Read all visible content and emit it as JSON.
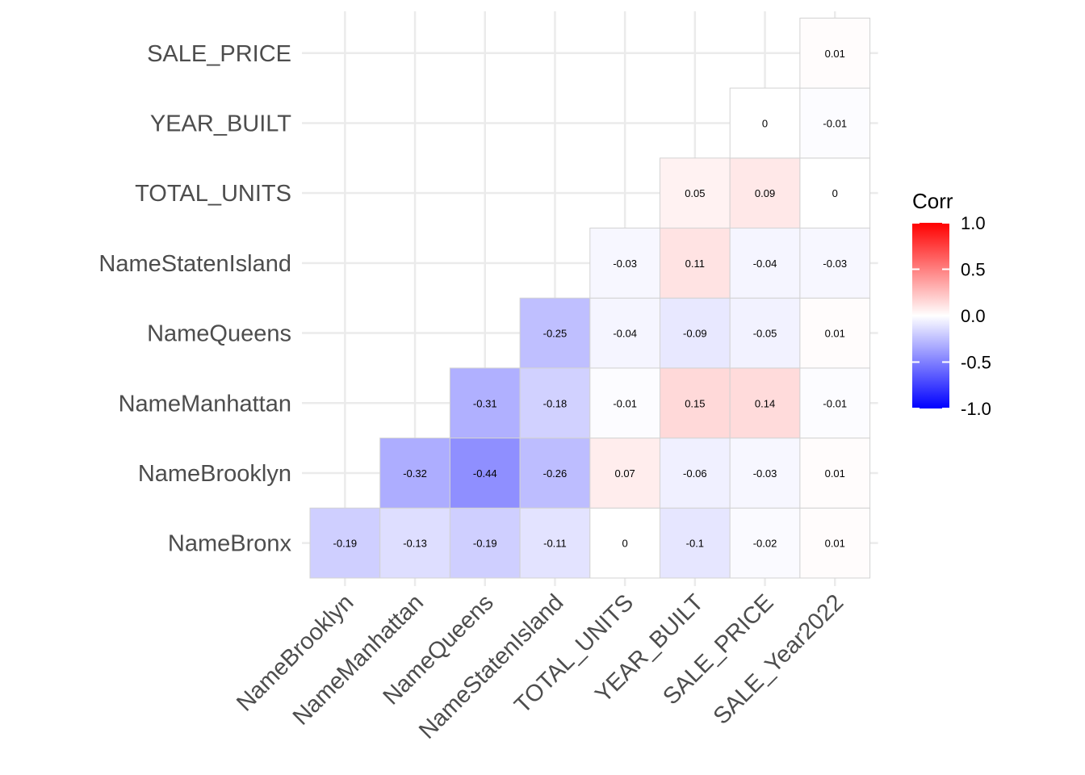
{
  "chart_data": {
    "type": "heatmap",
    "title": "",
    "xlabel": "",
    "ylabel": "",
    "x_categories": [
      "NameBrooklyn",
      "NameManhattan",
      "NameQueens",
      "NameStatenIsland",
      "TOTAL_UNITS",
      "YEAR_BUILT",
      "SALE_PRICE",
      "SALE_Year2022"
    ],
    "y_categories": [
      "NameBronx",
      "NameBrooklyn",
      "NameManhattan",
      "NameQueens",
      "NameStatenIsland",
      "TOTAL_UNITS",
      "YEAR_BUILT",
      "SALE_PRICE"
    ],
    "cells": [
      {
        "row": "NameBronx",
        "col": "NameBrooklyn",
        "value": -0.19,
        "label": "-0.19"
      },
      {
        "row": "NameBronx",
        "col": "NameManhattan",
        "value": -0.13,
        "label": "-0.13"
      },
      {
        "row": "NameBronx",
        "col": "NameQueens",
        "value": -0.19,
        "label": "-0.19"
      },
      {
        "row": "NameBronx",
        "col": "NameStatenIsland",
        "value": -0.11,
        "label": "-0.11"
      },
      {
        "row": "NameBronx",
        "col": "TOTAL_UNITS",
        "value": 0,
        "label": "0"
      },
      {
        "row": "NameBronx",
        "col": "YEAR_BUILT",
        "value": -0.1,
        "label": "-0.1"
      },
      {
        "row": "NameBronx",
        "col": "SALE_PRICE",
        "value": -0.02,
        "label": "-0.02"
      },
      {
        "row": "NameBronx",
        "col": "SALE_Year2022",
        "value": 0.01,
        "label": "0.01"
      },
      {
        "row": "NameBrooklyn",
        "col": "NameManhattan",
        "value": -0.32,
        "label": "-0.32"
      },
      {
        "row": "NameBrooklyn",
        "col": "NameQueens",
        "value": -0.44,
        "label": "-0.44"
      },
      {
        "row": "NameBrooklyn",
        "col": "NameStatenIsland",
        "value": -0.26,
        "label": "-0.26"
      },
      {
        "row": "NameBrooklyn",
        "col": "TOTAL_UNITS",
        "value": 0.07,
        "label": "0.07"
      },
      {
        "row": "NameBrooklyn",
        "col": "YEAR_BUILT",
        "value": -0.06,
        "label": "-0.06"
      },
      {
        "row": "NameBrooklyn",
        "col": "SALE_PRICE",
        "value": -0.03,
        "label": "-0.03"
      },
      {
        "row": "NameBrooklyn",
        "col": "SALE_Year2022",
        "value": 0.01,
        "label": "0.01"
      },
      {
        "row": "NameManhattan",
        "col": "NameQueens",
        "value": -0.31,
        "label": "-0.31"
      },
      {
        "row": "NameManhattan",
        "col": "NameStatenIsland",
        "value": -0.18,
        "label": "-0.18"
      },
      {
        "row": "NameManhattan",
        "col": "TOTAL_UNITS",
        "value": -0.01,
        "label": "-0.01"
      },
      {
        "row": "NameManhattan",
        "col": "YEAR_BUILT",
        "value": 0.15,
        "label": "0.15"
      },
      {
        "row": "NameManhattan",
        "col": "SALE_PRICE",
        "value": 0.14,
        "label": "0.14"
      },
      {
        "row": "NameManhattan",
        "col": "SALE_Year2022",
        "value": -0.01,
        "label": "-0.01"
      },
      {
        "row": "NameQueens",
        "col": "NameStatenIsland",
        "value": -0.25,
        "label": "-0.25"
      },
      {
        "row": "NameQueens",
        "col": "TOTAL_UNITS",
        "value": -0.04,
        "label": "-0.04"
      },
      {
        "row": "NameQueens",
        "col": "YEAR_BUILT",
        "value": -0.09,
        "label": "-0.09"
      },
      {
        "row": "NameQueens",
        "col": "SALE_PRICE",
        "value": -0.05,
        "label": "-0.05"
      },
      {
        "row": "NameQueens",
        "col": "SALE_Year2022",
        "value": 0.01,
        "label": "0.01"
      },
      {
        "row": "NameStatenIsland",
        "col": "TOTAL_UNITS",
        "value": -0.03,
        "label": "-0.03"
      },
      {
        "row": "NameStatenIsland",
        "col": "YEAR_BUILT",
        "value": 0.11,
        "label": "0.11"
      },
      {
        "row": "NameStatenIsland",
        "col": "SALE_PRICE",
        "value": -0.04,
        "label": "-0.04"
      },
      {
        "row": "NameStatenIsland",
        "col": "SALE_Year2022",
        "value": -0.03,
        "label": "-0.03"
      },
      {
        "row": "TOTAL_UNITS",
        "col": "YEAR_BUILT",
        "value": 0.05,
        "label": "0.05"
      },
      {
        "row": "TOTAL_UNITS",
        "col": "SALE_PRICE",
        "value": 0.09,
        "label": "0.09"
      },
      {
        "row": "TOTAL_UNITS",
        "col": "SALE_Year2022",
        "value": 0,
        "label": "0"
      },
      {
        "row": "YEAR_BUILT",
        "col": "SALE_PRICE",
        "value": 0,
        "label": "0"
      },
      {
        "row": "YEAR_BUILT",
        "col": "SALE_Year2022",
        "value": -0.01,
        "label": "-0.01"
      },
      {
        "row": "SALE_PRICE",
        "col": "SALE_Year2022",
        "value": 0.01,
        "label": "0.01"
      }
    ],
    "legend": {
      "title": "Corr",
      "position": "right",
      "limits": [
        -1.0,
        1.0
      ],
      "ticks": [
        {
          "value": 1.0,
          "label": "1.0"
        },
        {
          "value": 0.5,
          "label": "0.5"
        },
        {
          "value": 0.0,
          "label": "0.0"
        },
        {
          "value": -0.5,
          "label": "-0.5"
        },
        {
          "value": -1.0,
          "label": "-1.0"
        }
      ],
      "colors": {
        "low": "#0000ff",
        "mid": "#ffffff",
        "high": "#ff0000"
      }
    },
    "grid": true
  }
}
